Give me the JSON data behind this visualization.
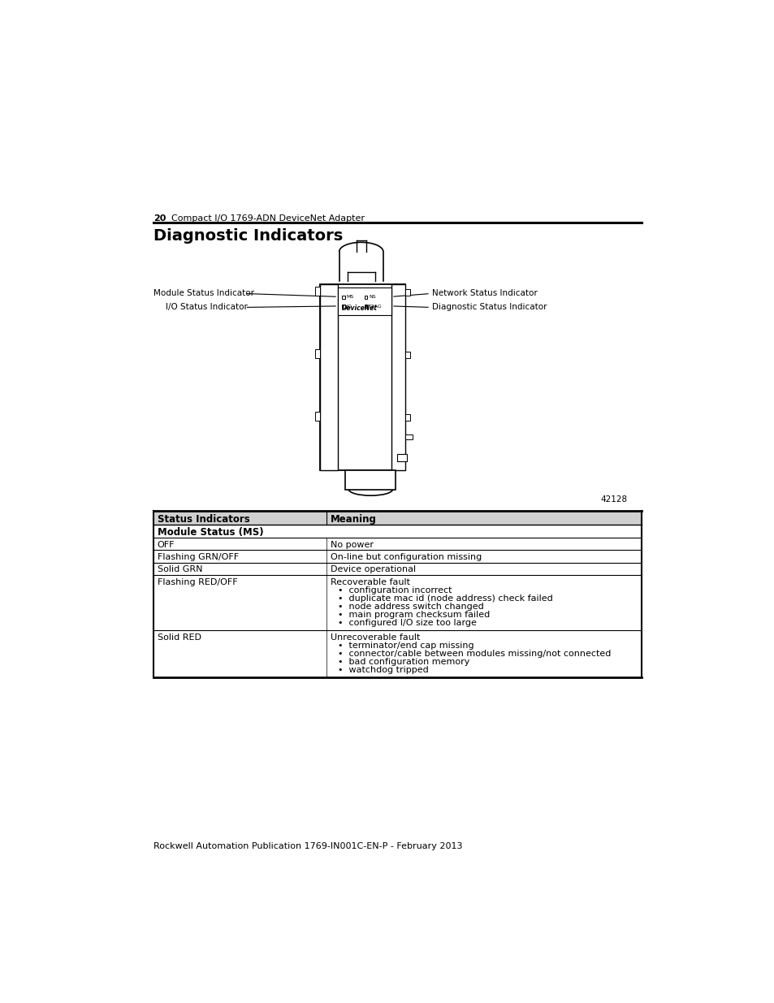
{
  "page_num": "20",
  "header_text": "Compact I/O 1769-ADN DeviceNet Adapter",
  "section_title": "Diagnostic Indicators",
  "footer_text": "Rockwell Automation Publication 1769-IN001C-EN-P - February 2013",
  "image_caption": "42128",
  "left_labels": [
    "Module Status Indicator",
    "I/O Status Indicator"
  ],
  "right_labels": [
    "Network Status Indicator",
    "Diagnostic Status Indicator"
  ],
  "table_header_col1": "Status Indicators",
  "table_header_col2": "Meaning",
  "table_subheader": "Module Status (MS)",
  "table_rows": [
    {
      "col1": "OFF",
      "col2": "No power",
      "col2_bullets": []
    },
    {
      "col1": "Flashing GRN/OFF",
      "col2": "On-line but configuration missing",
      "col2_bullets": []
    },
    {
      "col1": "Solid GRN",
      "col2": "Device operational",
      "col2_bullets": []
    },
    {
      "col1": "Flashing RED/OFF",
      "col2": "Recoverable fault",
      "col2_bullets": [
        "configuration incorrect",
        "duplicate mac id (node address) check failed",
        "node address switch changed",
        "main program checksum failed",
        "configured I/O size too large"
      ]
    },
    {
      "col1": "Solid RED",
      "col2": "Unrecoverable fault",
      "col2_bullets": [
        "terminator/end cap missing",
        "connector/cable between modules missing/not connected",
        "bad configuration memory",
        "watchdog tripped"
      ]
    }
  ],
  "background_color": "#ffffff",
  "text_color": "#000000",
  "table_header_bg": "#d0d0d0",
  "col_split": 0.355
}
